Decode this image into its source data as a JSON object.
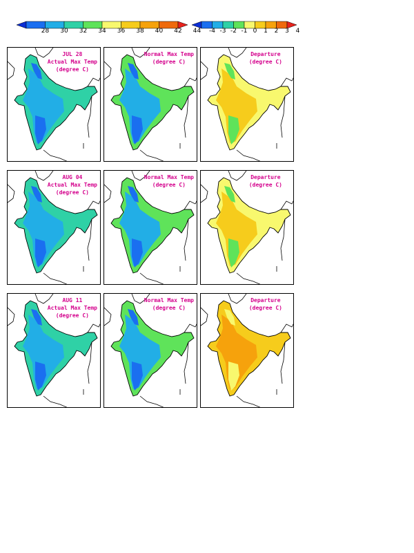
{
  "legends": {
    "temperature": {
      "labels": [
        "28",
        "30",
        "32",
        "34",
        "36",
        "38",
        "40",
        "42",
        "44"
      ],
      "colors": [
        "#0c2fd6",
        "#1a6ff0",
        "#22aee6",
        "#2fd1a6",
        "#5fe35a",
        "#f8f86e",
        "#f6cc1c",
        "#f6a20c",
        "#ef6a0c",
        "#e8221c"
      ]
    },
    "departure": {
      "labels": [
        "-4",
        "-3",
        "-2",
        "-1",
        "0",
        "1",
        "2",
        "3",
        "4"
      ],
      "colors": [
        "#0c2fd6",
        "#1a6ff0",
        "#22aee6",
        "#2fd1a6",
        "#5fe35a",
        "#f8f86e",
        "#f6cc1c",
        "#f6a20c",
        "#ef6a0c",
        "#e8221c"
      ]
    }
  },
  "rows": [
    {
      "date": "JUL 28",
      "actual": {
        "title": "Actual Max Temp",
        "units": "(degree C)"
      },
      "normal": {
        "title": "Normal Max Temp",
        "units": "(degree C)"
      },
      "departure": {
        "title": "Departure",
        "units": "(degree C)"
      },
      "palette": {
        "actual": [
          "#2fd1a6",
          "#22aee6",
          "#1a6ff0"
        ],
        "normal": [
          "#5fe35a",
          "#22aee6",
          "#1a6ff0"
        ],
        "departure": [
          "#f8f86e",
          "#f6cc1c",
          "#5fe35a"
        ]
      }
    },
    {
      "date": "AUG 04",
      "actual": {
        "title": "Actual Max Temp",
        "units": "(degree C)"
      },
      "normal": {
        "title": "Normal Max Temp",
        "units": "(degree C)"
      },
      "departure": {
        "title": "Departure",
        "units": "(degree C)"
      },
      "palette": {
        "actual": [
          "#2fd1a6",
          "#22aee6",
          "#1a6ff0"
        ],
        "normal": [
          "#5fe35a",
          "#22aee6",
          "#1a6ff0"
        ],
        "departure": [
          "#f8f86e",
          "#f6cc1c",
          "#5fe35a"
        ]
      }
    },
    {
      "date": "AUG 11",
      "actual": {
        "title": "Actual Max Temp",
        "units": "(degree C)"
      },
      "normal": {
        "title": "Normal Max Temp",
        "units": "(degree C)"
      },
      "departure": {
        "title": "Departure",
        "units": "(degree C)"
      },
      "palette": {
        "actual": [
          "#2fd1a6",
          "#22aee6",
          "#1a6ff0"
        ],
        "normal": [
          "#5fe35a",
          "#22aee6",
          "#1a6ff0"
        ],
        "departure": [
          "#f6cc1c",
          "#f6a20c",
          "#f8f86e"
        ]
      }
    }
  ]
}
